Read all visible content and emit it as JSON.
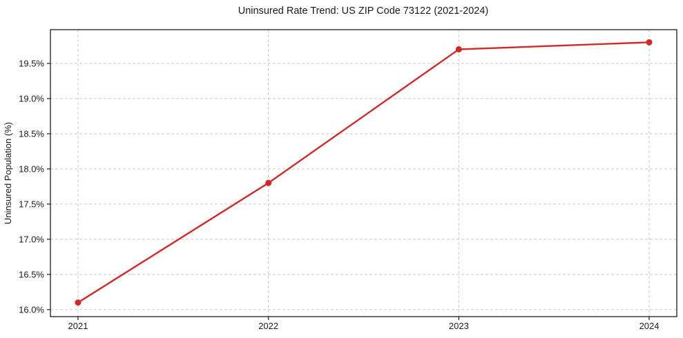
{
  "figure": {
    "background": "#ffffff"
  },
  "chart_data": {
    "type": "line",
    "title": "Uninsured Rate Trend: US ZIP Code 73122 (2021-2024)",
    "xlabel": "",
    "ylabel": "Uninsured Population (%)",
    "x": [
      2021,
      2022,
      2023,
      2024
    ],
    "xtick_labels": [
      "2021",
      "2022",
      "2023",
      "2024"
    ],
    "series": [
      {
        "name": "Uninsured rate",
        "values": [
          16.1,
          17.8,
          19.7,
          19.8
        ],
        "color": "#d62728",
        "marker": "circle"
      }
    ],
    "yticks": [
      16.0,
      16.5,
      17.0,
      17.5,
      18.0,
      18.5,
      19.0,
      19.5
    ],
    "ytick_labels": [
      "16.0%",
      "16.5%",
      "17.0%",
      "17.5%",
      "18.0%",
      "18.5%",
      "19.0%",
      "19.5%"
    ],
    "xlim": [
      2020.855,
      2024.145
    ],
    "ylim": [
      15.9,
      19.98
    ],
    "grid": true,
    "grid_style": "dashed",
    "grid_color": "#c9c9c9",
    "spine_color": "#1a1a1a",
    "legend_position": "none"
  }
}
